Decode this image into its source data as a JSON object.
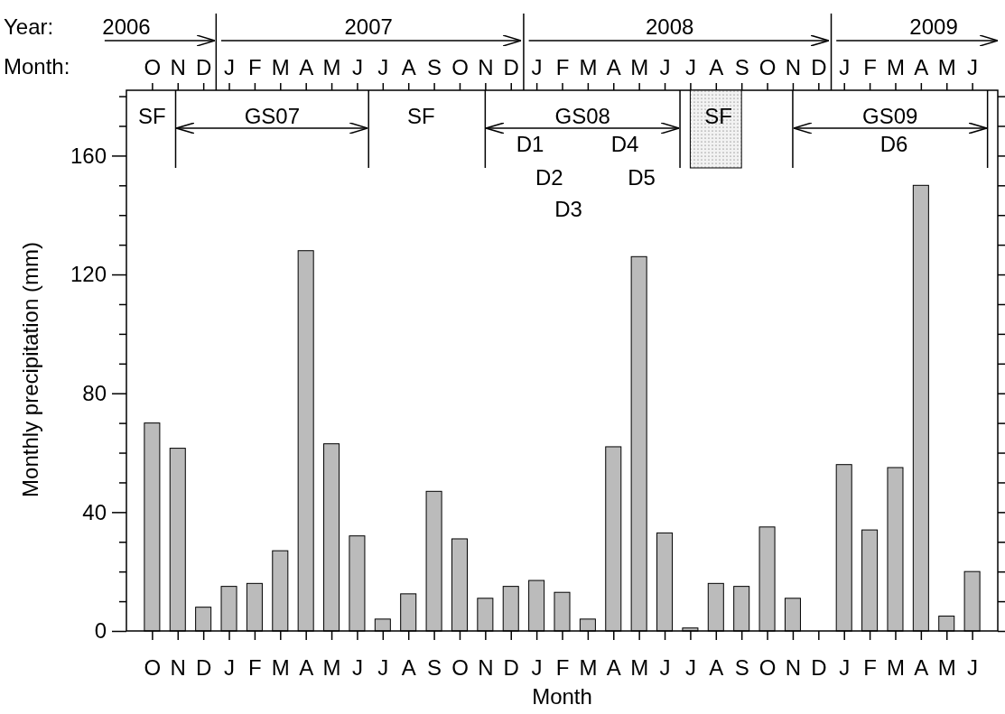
{
  "chart_data": {
    "type": "bar",
    "xlabel": "Month",
    "ylabel": "Monthly precipitation (mm)",
    "categories": [
      "O",
      "N",
      "D",
      "J",
      "F",
      "M",
      "A",
      "M",
      "J",
      "J",
      "A",
      "S",
      "O",
      "N",
      "D",
      "J",
      "F",
      "M",
      "A",
      "M",
      "J",
      "J",
      "A",
      "S",
      "O",
      "N",
      "D",
      "J",
      "F",
      "M",
      "A",
      "M",
      "J"
    ],
    "series": [
      {
        "color": "#bbbbbb",
        "values": [
          70,
          61.5,
          8,
          15,
          16,
          27,
          128,
          63,
          32,
          4,
          12.5,
          47,
          31,
          11,
          15,
          17,
          13,
          4,
          62,
          126,
          33,
          1,
          16,
          15,
          35,
          11,
          null,
          56,
          34,
          55,
          150,
          5,
          20
        ]
      }
    ],
    "ylim": [
      0,
      182
    ],
    "yticks": [
      0,
      {
        "value": 10,
        "label": null
      },
      {
        "value": 20,
        "label": null
      },
      {
        "value": 30,
        "label": null
      },
      40,
      {
        "value": 50,
        "label": null
      },
      {
        "value": 60,
        "label": null
      },
      {
        "value": 70,
        "label": null
      },
      80,
      {
        "value": 90,
        "label": null
      },
      {
        "value": 100,
        "label": null
      },
      {
        "value": 110,
        "label": null
      },
      120,
      {
        "value": 130,
        "label": null
      },
      {
        "value": 140,
        "label": null
      },
      {
        "value": 150,
        "label": null
      },
      160,
      {
        "value": 170,
        "label": null
      },
      {
        "value": 180,
        "label": null
      }
    ],
    "grid": false,
    "annotations": [
      "Year:",
      "Month:",
      "2006",
      "2007",
      "2008",
      "2009",
      "SF",
      "GS07",
      "SF",
      "GS08",
      "SF",
      "GS09",
      "D1",
      "D2",
      "D3",
      "D4",
      "D5",
      "D6"
    ]
  }
}
